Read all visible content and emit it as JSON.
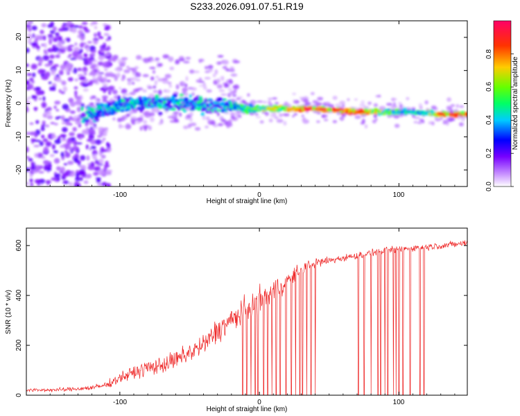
{
  "title": "S233.2026.091.07.51.R19",
  "chart_data": [
    {
      "type": "heatmap",
      "title": "S233.2026.091.07.51.R19",
      "xlabel": "Height of straight line (km)",
      "ylabel": "Frequency (Hz)",
      "xlim": [
        -167,
        149
      ],
      "ylim": [
        -25,
        25
      ],
      "x_ticks": [
        "-100",
        "0",
        "100"
      ],
      "y_ticks": [
        "-20",
        "-10",
        "0",
        "10",
        "20"
      ],
      "colorbar": {
        "label": "Normalized spectral amplitude",
        "range": [
          0,
          1
        ],
        "ticks": [
          "0.0",
          "0.2",
          "0.4",
          "0.6",
          "0.8"
        ],
        "colors": [
          "#ffffff",
          "#cc99ff",
          "#7700ff",
          "#0000ff",
          "#00ccff",
          "#00ff66",
          "#66ff00",
          "#ffcc00",
          "#ff3300",
          "#ff0066"
        ]
      },
      "ridge": {
        "description_points": [
          {
            "x": -125,
            "freq": -4,
            "amp": 0.3
          },
          {
            "x": -100,
            "freq": 0,
            "amp": 0.25
          },
          {
            "x": -60,
            "freq": 0,
            "amp": 0.3
          },
          {
            "x": -30,
            "freq": -0.5,
            "amp": 0.45
          },
          {
            "x": -10,
            "freq": -1.5,
            "amp": 0.55
          },
          {
            "x": 20,
            "freq": -1.5,
            "amp": 0.75
          },
          {
            "x": 40,
            "freq": -1.5,
            "amp": 0.95
          },
          {
            "x": 75,
            "freq": -2.5,
            "amp": 0.8
          },
          {
            "x": 110,
            "freq": -2.5,
            "amp": 0.45
          },
          {
            "x": 135,
            "freq": -3.2,
            "amp": 0.9
          }
        ]
      }
    },
    {
      "type": "line",
      "xlabel": "Height of straight line (km)",
      "ylabel": "SNR (10 * v/v)",
      "xlim": [
        -167,
        149
      ],
      "ylim": [
        0,
        670
      ],
      "x_ticks": [
        "-100",
        "0",
        "100"
      ],
      "y_ticks": [
        "0",
        "200",
        "400",
        "600"
      ],
      "series": [
        {
          "name": "SNR",
          "color": "#ee2222",
          "x": [
            -167,
            -140,
            -120,
            -110,
            -100,
            -90,
            -80,
            -70,
            -60,
            -50,
            -40,
            -30,
            -20,
            -10,
            0,
            10,
            20,
            30,
            40,
            50,
            60,
            70,
            80,
            90,
            100,
            110,
            120,
            130,
            140,
            149
          ],
          "y": [
            20,
            22,
            30,
            40,
            70,
            90,
            110,
            120,
            140,
            170,
            200,
            260,
            300,
            340,
            380,
            420,
            460,
            510,
            530,
            540,
            550,
            560,
            570,
            580,
            585,
            590,
            595,
            600,
            605,
            610
          ],
          "noise": [
            10,
            12,
            15,
            20,
            30,
            40,
            45,
            50,
            55,
            60,
            65,
            75,
            80,
            80,
            75,
            70,
            60,
            40,
            30,
            25,
            20,
            20,
            20,
            20,
            20,
            20,
            20,
            20,
            20,
            20
          ],
          "dropout_x": [
            -12,
            -9,
            -6,
            -3,
            -1,
            3,
            6,
            9,
            12,
            15,
            19,
            23,
            26,
            29,
            31,
            34,
            37,
            40,
            71,
            75,
            80,
            85,
            87,
            90,
            92,
            96,
            98,
            100,
            103,
            108,
            115,
            118
          ]
        }
      ]
    }
  ]
}
